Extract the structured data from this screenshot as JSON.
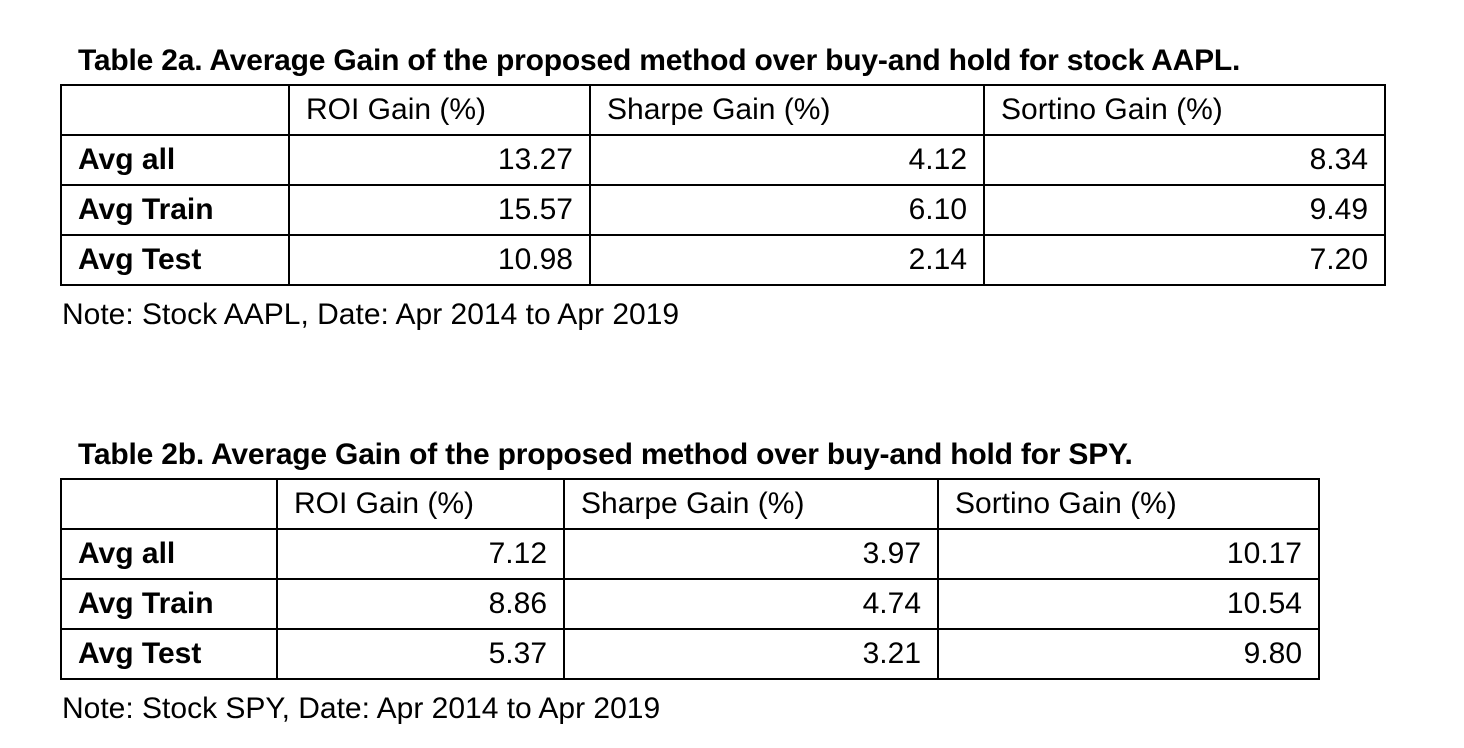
{
  "tables": [
    {
      "caption": "Table 2a. Average Gain of the proposed method over buy-and hold for stock AAPL.",
      "headers": [
        "",
        "ROI Gain (%)",
        "Sharpe Gain (%)",
        "Sortino Gain (%)"
      ],
      "rows": [
        {
          "label": "Avg all",
          "values": [
            "13.27",
            "4.12",
            "8.34"
          ]
        },
        {
          "label": "Avg Train",
          "values": [
            "15.57",
            "6.10",
            "9.49"
          ]
        },
        {
          "label": "Avg Test",
          "values": [
            "10.98",
            "2.14",
            "7.20"
          ]
        }
      ],
      "note": "Note: Stock AAPL, Date: Apr 2014 to Apr 2019"
    },
    {
      "caption": "Table 2b. Average Gain of the proposed method over buy-and hold for SPY.",
      "headers": [
        "",
        "ROI Gain (%)",
        "Sharpe Gain (%)",
        "Sortino Gain (%)"
      ],
      "rows": [
        {
          "label": "Avg all",
          "values": [
            "7.12",
            "3.97",
            "10.17"
          ]
        },
        {
          "label": "Avg Train",
          "values": [
            "8.86",
            "4.74",
            "10.54"
          ]
        },
        {
          "label": "Avg Test",
          "values": [
            "5.37",
            "3.21",
            "9.80"
          ]
        }
      ],
      "note": "Note: Stock SPY, Date: Apr 2014 to Apr 2019"
    }
  ]
}
